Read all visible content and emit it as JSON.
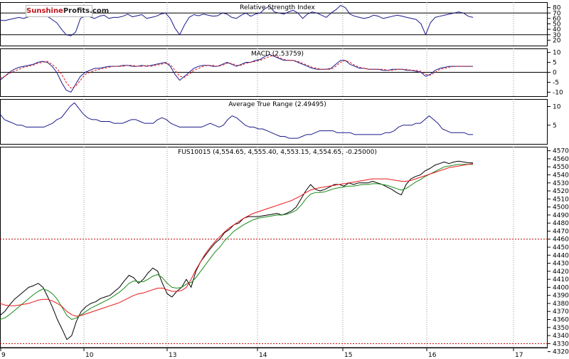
{
  "brand": {
    "name_red": "Sunshine",
    "name_black": "Profits.com"
  },
  "colors": {
    "price": "#000000",
    "ma_fast": "#1a8a1a",
    "ma_slow": "#e8191b",
    "indicator": "#1a1a8c",
    "macd_signal": "#d61b1b",
    "ref_line": "#c00000"
  },
  "chart_data": {
    "type": "line",
    "x_labels": [
      "9",
      "10",
      "13",
      "14",
      "15",
      "16",
      "17"
    ],
    "panels": [
      {
        "id": "rsi",
        "title": "Relative Strength Index",
        "ylim": [
          10,
          90
        ],
        "y_ticks": [
          80,
          70,
          60,
          50,
          40,
          30,
          20
        ],
        "ref_lines": [
          70,
          30
        ],
        "series": [
          {
            "values": [
              57,
              56,
              58,
              60,
              62,
              60,
              63,
              64,
              67,
              70,
              64,
              58,
              52,
              40,
              30,
              28,
              35,
              60,
              65,
              63,
              60,
              64,
              66,
              60,
              62,
              62,
              64,
              68,
              63,
              65,
              67,
              60,
              62,
              64,
              68,
              70,
              60,
              42,
              30,
              48,
              62,
              67,
              65,
              68,
              66,
              64,
              65,
              70,
              68,
              62,
              60,
              66,
              70,
              64,
              68,
              70,
              78,
              82,
              72,
              70,
              68,
              72,
              75,
              70,
              60,
              68,
              72,
              70,
              66,
              62,
              70,
              76,
              84,
              80,
              68,
              64,
              62,
              60,
              62,
              66,
              64,
              60,
              62,
              64,
              66,
              64,
              62,
              60,
              58,
              50,
              30,
              52,
              62,
              64,
              66,
              68,
              70,
              72,
              70,
              64,
              62
            ]
          }
        ]
      },
      {
        "id": "macd",
        "title": "MACD (2.53759)",
        "ylim": [
          -12,
          12
        ],
        "y_ticks": [
          10,
          5,
          0,
          -5,
          -10
        ],
        "ref_lines": [
          0
        ],
        "series": [
          {
            "values": [
              -4,
              -2,
              0,
              1.5,
              2.5,
              3,
              3.5,
              4,
              5,
              5.5,
              5,
              3,
              0,
              -5,
              -9,
              -10,
              -6,
              -2,
              0,
              1,
              2,
              2,
              2.5,
              3,
              3,
              3,
              3.5,
              3.5,
              3,
              3,
              3.5,
              3,
              3.5,
              4,
              4.5,
              5,
              3,
              -1,
              -4,
              -2,
              0,
              2,
              3,
              3.5,
              3.5,
              3,
              3,
              4,
              5,
              4,
              3,
              4,
              5,
              5,
              6,
              6.5,
              8,
              9,
              8,
              7,
              6,
              6,
              6,
              5,
              4,
              3,
              2,
              1.5,
              1.5,
              1.5,
              2,
              4,
              6,
              6,
              4,
              3,
              2,
              2,
              1.5,
              1.5,
              1.5,
              1,
              1,
              1.5,
              1.5,
              1.5,
              1,
              1,
              0.5,
              0,
              -2,
              -1,
              1,
              2,
              2.5,
              3,
              3,
              3,
              3,
              3,
              3
            ]
          },
          {
            "values": [
              -3,
              -2,
              -0.5,
              0.5,
              1.5,
              2.5,
              3,
              3.5,
              4.5,
              5,
              5.5,
              4,
              2,
              -1,
              -5,
              -8,
              -7,
              -4,
              -1,
              0,
              1,
              1.5,
              2,
              2.5,
              3,
              3,
              3,
              3.5,
              3.5,
              3,
              3,
              3.5,
              3,
              3.5,
              4,
              4.5,
              4,
              1,
              -2,
              -2.5,
              -1,
              1,
              2,
              3,
              3.5,
              3.5,
              3,
              3.5,
              4.5,
              4.5,
              3.5,
              3.5,
              4.5,
              5,
              5.5,
              6,
              7,
              8,
              8.5,
              7.5,
              6.5,
              6,
              6,
              5.5,
              4.5,
              3.5,
              2.5,
              2,
              1.5,
              1.5,
              1.5,
              3,
              5,
              6,
              5,
              3.5,
              2.5,
              2,
              1.5,
              1.5,
              1.5,
              1.5,
              1,
              1,
              1.5,
              1.5,
              1.5,
              1,
              1,
              0.5,
              -1,
              -1.5,
              0,
              1.5,
              2,
              2.5,
              3,
              3,
              3,
              3,
              3
            ]
          }
        ]
      },
      {
        "id": "atr",
        "title": "Average True Range (2.49495)",
        "ylim": [
          0,
          12
        ],
        "y_ticks": [
          10,
          5
        ],
        "ref_lines": [],
        "series": [
          {
            "values": [
              8,
              6.5,
              6,
              5.5,
              5,
              5,
              4.5,
              4.5,
              4.5,
              4.5,
              4.5,
              5,
              5.5,
              6.5,
              7,
              8.5,
              10,
              11,
              9.5,
              8,
              7,
              6.5,
              6.5,
              6,
              6,
              6,
              5.5,
              5.5,
              5.5,
              6,
              6.5,
              6.5,
              6,
              5.5,
              5.5,
              5.5,
              6.5,
              7,
              6.5,
              5.5,
              5,
              4.5,
              4.5,
              4.5,
              4.5,
              4.5,
              4.5,
              5,
              5.5,
              5,
              4.5,
              5,
              6.5,
              7.5,
              7,
              6,
              5,
              4.5,
              4.5,
              4,
              4,
              3.5,
              3,
              2.5,
              2,
              2,
              1.5,
              1.5,
              1.5,
              2,
              2.5,
              2.5,
              3,
              3.5,
              3.5,
              3.5,
              3.5,
              3,
              3,
              3,
              3,
              2.5,
              2.5,
              2.5,
              2.5,
              2.5,
              2.5,
              2.5,
              3,
              3,
              3.5,
              4.5,
              5,
              5,
              5,
              5.5,
              5.5,
              6.5,
              7.5,
              6.5,
              5.5,
              4,
              3.5,
              3,
              3,
              3,
              3,
              2.5,
              2.5
            ]
          }
        ]
      },
      {
        "id": "price",
        "title": "FUS10015 (4,554.65, 4,555.40, 4,553.15, 4,554.65, -0.25000)",
        "ylim": [
          4325,
          4575
        ],
        "y_ticks": [
          4570,
          4560,
          4550,
          4540,
          4530,
          4520,
          4510,
          4500,
          4490,
          4480,
          4470,
          4460,
          4450,
          4440,
          4430,
          4420,
          4410,
          4400,
          4390,
          4380,
          4370,
          4360,
          4350,
          4340,
          4330,
          4320
        ],
        "ref_lines": [
          4460,
          4330
        ],
        "series": [
          {
            "values": [
              4365,
              4370,
              4378,
              4385,
              4390,
              4395,
              4400,
              4402,
              4405,
              4400,
              4388,
              4375,
              4360,
              4348,
              4335,
              4340,
              4358,
              4370,
              4376,
              4380,
              4382,
              4386,
              4388,
              4390,
              4395,
              4400,
              4408,
              4415,
              4412,
              4405,
              4410,
              4418,
              4424,
              4420,
              4405,
              4392,
              4388,
              4395,
              4400,
              4410,
              4400,
              4420,
              4432,
              4440,
              4448,
              4455,
              4460,
              4468,
              4472,
              4478,
              4480,
              4486,
              4488,
              4488,
              4488,
              4489,
              4490,
              4491,
              4492,
              4490,
              4492,
              4495,
              4500,
              4510,
              4520,
              4528,
              4522,
              4520,
              4522,
              4525,
              4528,
              4528,
              4526,
              4530,
              4528,
              4530,
              4530,
              4530,
              4532,
              4530,
              4528,
              4525,
              4522,
              4518,
              4515,
              4528,
              4535,
              4538,
              4540,
              4545,
              4548,
              4552,
              4554,
              4556,
              4554,
              4556,
              4557,
              4556,
              4555,
              4555
            ]
          },
          {
            "values": [
              4360,
              4362,
              4366,
              4371,
              4376,
              4381,
              4386,
              4391,
              4395,
              4398,
              4396,
              4392,
              4385,
              4375,
              4365,
              4360,
              4362,
              4366,
              4370,
              4374,
              4377,
              4380,
              4383,
              4386,
              4390,
              4394,
              4399,
              4405,
              4408,
              4407,
              4407,
              4410,
              4414,
              4416,
              4412,
              4405,
              4400,
              4399,
              4400,
              4404,
              4406,
              4412,
              4420,
              4428,
              4436,
              4444,
              4450,
              4458,
              4464,
              4470,
              4474,
              4478,
              4481,
              4484,
              4486,
              4487,
              4488,
              4489,
              4490,
              4490,
              4491,
              4493,
              4496,
              4502,
              4510,
              4516,
              4518,
              4518,
              4519,
              4521,
              4523,
              4524,
              4525,
              4526,
              4526,
              4527,
              4528,
              4528,
              4529,
              4529,
              4528,
              4527,
              4525,
              4523,
              4521,
              4523,
              4527,
              4531,
              4534,
              4538,
              4541,
              4544,
              4547,
              4550,
              4551,
              4552,
              4553,
              4553,
              4553,
              4553
            ]
          },
          {
            "values": [
              4380,
              4378,
              4377,
              4377,
              4378,
              4379,
              4380,
              4382,
              4384,
              4385,
              4385,
              4383,
              4380,
              4376,
              4370,
              4366,
              4364,
              4365,
              4367,
              4369,
              4371,
              4373,
              4375,
              4377,
              4379,
              4381,
              4384,
              4387,
              4390,
              4392,
              4393,
              4395,
              4397,
              4399,
              4399,
              4397,
              4395,
              4395,
              4396,
              4400,
              4410,
              4422,
              4432,
              4442,
              4450,
              4457,
              4463,
              4469,
              4474,
              4478,
              4482,
              4486,
              4489,
              4492,
              4494,
              4496,
              4498,
              4500,
              4502,
              4504,
              4506,
              4508,
              4511,
              4514,
              4518,
              4521,
              4523,
              4524,
              4525,
              4526,
              4527,
              4528,
              4529,
              4530,
              4531,
              4532,
              4533,
              4534,
              4535,
              4535,
              4535,
              4535,
              4534,
              4533,
              4532,
              4532,
              4533,
              4535,
              4537,
              4539,
              4541,
              4543,
              4545,
              4547,
              4549,
              4550,
              4551,
              4552,
              4553,
              4554
            ]
          }
        ]
      }
    ]
  }
}
